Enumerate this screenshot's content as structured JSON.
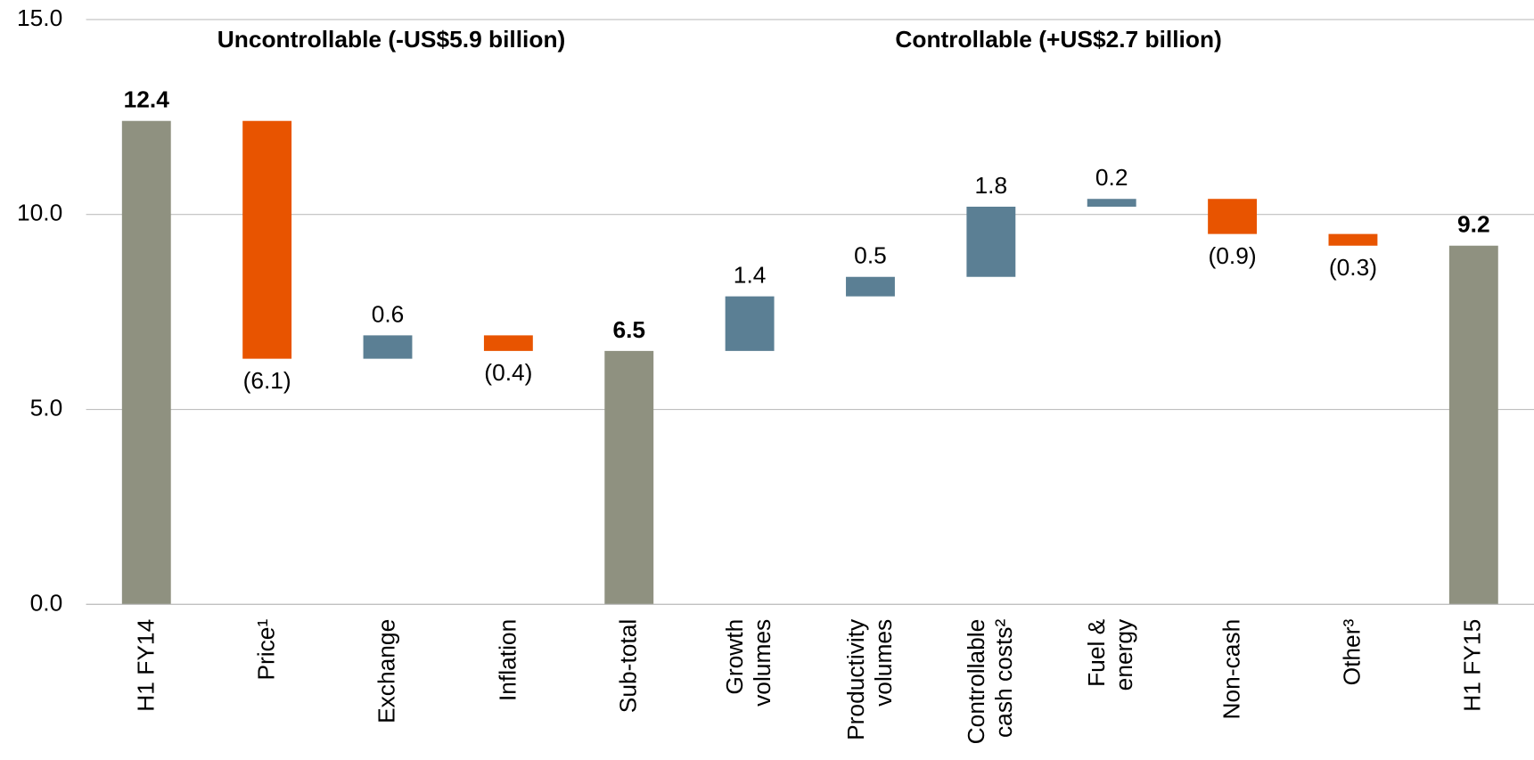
{
  "chart_data": {
    "type": "waterfall",
    "annotations": [
      "Uncontrollable (-US$5.9 billion)",
      "Controllable (+US$2.7 billion)"
    ],
    "categories": [
      "H1 FY14",
      "Price¹",
      "Exchange",
      "Inflation",
      "Sub-total",
      "Growth volumes",
      "Productivity volumes",
      "Controllable cash costs²",
      "Fuel & energy",
      "Non-cash",
      "Other³",
      "H1 FY15"
    ],
    "measure": [
      "absolute",
      "relative",
      "relative",
      "relative",
      "absolute",
      "relative",
      "relative",
      "relative",
      "relative",
      "relative",
      "relative",
      "absolute"
    ],
    "values": [
      12.4,
      -6.1,
      0.6,
      -0.4,
      6.5,
      1.4,
      0.5,
      1.8,
      0.2,
      -0.9,
      -0.3,
      9.2
    ],
    "value_labels": [
      "12.4",
      "(6.1)",
      "0.6",
      "(0.4)",
      "6.5",
      "1.4",
      "0.5",
      "1.8",
      "0.2",
      "(0.9)",
      "(0.3)",
      "9.2"
    ],
    "color_total": "#8f9180",
    "color_increase": "#5b7f94",
    "color_decrease": "#e85400",
    "ylim": [
      0,
      15
    ],
    "yticks": [
      {
        "value": 0,
        "label": "0.0"
      },
      {
        "value": 5,
        "label": "5.0"
      },
      {
        "value": 10,
        "label": "10.0"
      },
      {
        "value": 15,
        "label": "15.0"
      }
    ],
    "grid": true
  }
}
